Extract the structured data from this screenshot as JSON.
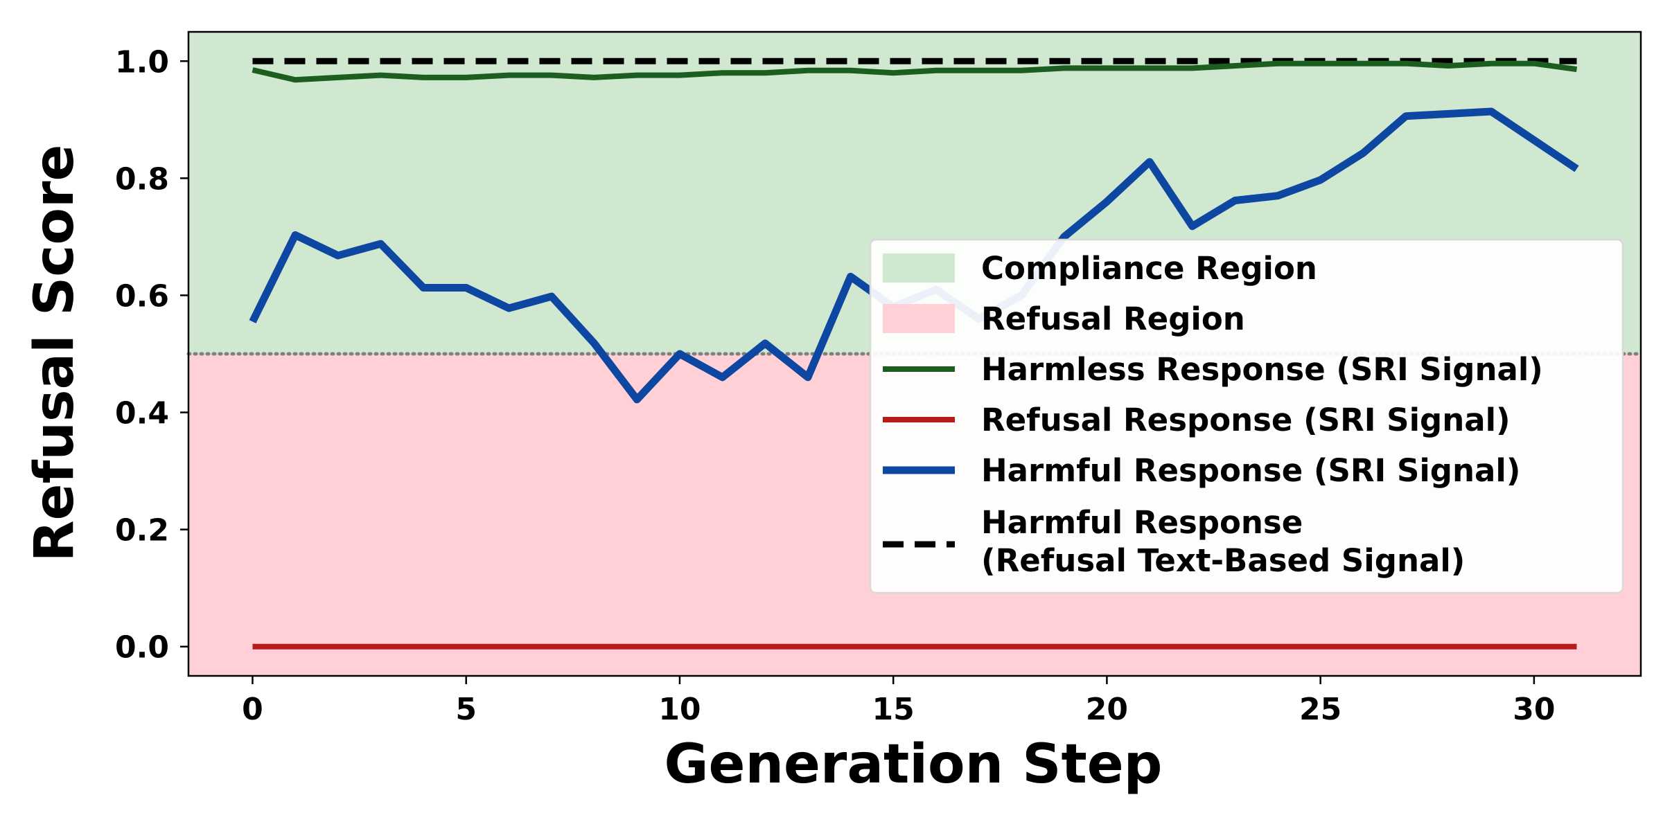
{
  "chart_data": {
    "type": "line",
    "xlabel": "Generation Step",
    "ylabel": "Refusal Score",
    "xlim": [
      -1.5,
      32.5
    ],
    "ylim": [
      -0.05,
      1.05
    ],
    "x_ticks": [
      0,
      5,
      10,
      15,
      20,
      25,
      30
    ],
    "y_ticks": [
      "0.0",
      "0.2",
      "0.4",
      "0.6",
      "0.8",
      "1.0"
    ],
    "threshold": 0.5,
    "grid": false,
    "legend_position": "center-right",
    "regions": [
      {
        "name": "Compliance Region",
        "from": 0.5,
        "to": 1.05,
        "color": "#cfe8cf"
      },
      {
        "name": "Refusal Region",
        "from": -0.05,
        "to": 0.5,
        "color": "#ffd1d6"
      }
    ],
    "series": [
      {
        "name": "Harmless Response (SRI Signal)",
        "color": "#1b5e20",
        "style": "solid",
        "x": [
          0,
          1,
          2,
          3,
          4,
          5,
          6,
          7,
          8,
          9,
          10,
          11,
          12,
          13,
          14,
          15,
          16,
          17,
          18,
          19,
          20,
          21,
          22,
          23,
          24,
          25,
          26,
          27,
          28,
          29,
          30,
          31
        ],
        "values": [
          0.985,
          0.968,
          0.972,
          0.976,
          0.972,
          0.972,
          0.976,
          0.976,
          0.972,
          0.976,
          0.976,
          0.98,
          0.98,
          0.984,
          0.984,
          0.98,
          0.984,
          0.984,
          0.984,
          0.988,
          0.988,
          0.988,
          0.988,
          0.992,
          0.996,
          0.996,
          0.996,
          0.996,
          0.992,
          0.996,
          0.996,
          0.986
        ]
      },
      {
        "name": "Refusal Response (SRI Signal)",
        "color": "#b71c1c",
        "style": "solid",
        "x": [
          0,
          1,
          2,
          3,
          4,
          5,
          6,
          7,
          8,
          9,
          10,
          11,
          12,
          13,
          14,
          15,
          16,
          17,
          18,
          19,
          20,
          21,
          22,
          23,
          24,
          25,
          26,
          27,
          28,
          29,
          30,
          31
        ],
        "values": [
          0,
          0,
          0,
          0,
          0,
          0,
          0,
          0,
          0,
          0,
          0,
          0,
          0,
          0,
          0,
          0,
          0,
          0,
          0,
          0,
          0,
          0,
          0,
          0,
          0,
          0,
          0,
          0,
          0,
          0,
          0,
          0
        ]
      },
      {
        "name": "Harmful Response (SRI Signal)",
        "color": "#0d47a1",
        "style": "solid",
        "x": [
          0,
          1,
          2,
          3,
          4,
          5,
          6,
          7,
          8,
          9,
          10,
          11,
          12,
          13,
          14,
          15,
          16,
          17,
          18,
          19,
          20,
          21,
          22,
          23,
          24,
          25,
          26,
          27,
          28,
          29,
          30,
          31
        ],
        "values": [
          0.555,
          0.703,
          0.668,
          0.688,
          0.613,
          0.613,
          0.578,
          0.598,
          0.518,
          0.422,
          0.5,
          0.46,
          0.518,
          0.46,
          0.632,
          0.58,
          0.61,
          0.56,
          0.6,
          0.7,
          0.76,
          0.828,
          0.718,
          0.762,
          0.77,
          0.797,
          0.843,
          0.906,
          0.91,
          0.914,
          0.865,
          0.816
        ]
      },
      {
        "name": "Harmful Response\n(Refusal Text-Based Signal)",
        "color": "#000000",
        "style": "dashed",
        "x": [
          0,
          1,
          2,
          3,
          4,
          5,
          6,
          7,
          8,
          9,
          10,
          11,
          12,
          13,
          14,
          15,
          16,
          17,
          18,
          19,
          20,
          21,
          22,
          23,
          24,
          25,
          26,
          27,
          28,
          29,
          30,
          31
        ],
        "values": [
          1,
          1,
          1,
          1,
          1,
          1,
          1,
          1,
          1,
          1,
          1,
          1,
          1,
          1,
          1,
          1,
          1,
          1,
          1,
          1,
          1,
          1,
          1,
          1,
          1,
          1,
          1,
          1,
          1,
          1,
          1,
          1
        ]
      }
    ],
    "legend": [
      {
        "kind": "patch",
        "color": "#cfe8cf",
        "label": "Compliance Region"
      },
      {
        "kind": "patch",
        "color": "#ffd1d6",
        "label": "Refusal Region"
      },
      {
        "kind": "line",
        "color": "#1b5e20",
        "style": "solid",
        "label": "Harmless Response (SRI Signal)"
      },
      {
        "kind": "line",
        "color": "#b71c1c",
        "style": "solid",
        "label": "Refusal Response (SRI Signal)"
      },
      {
        "kind": "line",
        "color": "#0d47a1",
        "style": "solid",
        "label": "Harmful Response (SRI Signal)"
      },
      {
        "kind": "line",
        "color": "#000000",
        "style": "dashed",
        "label": "Harmful Response",
        "label2": "(Refusal Text-Based Signal)"
      }
    ]
  }
}
